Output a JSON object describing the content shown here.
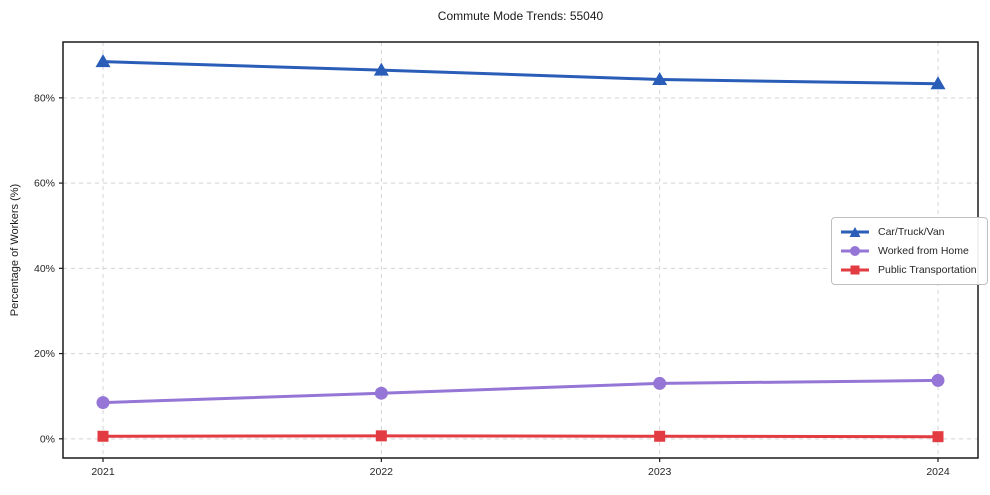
{
  "page": {
    "title": "Commute Mode Trends: 55040"
  },
  "axes": {
    "ylabel": "Percentage of Workers (%)",
    "y_tick_labels": [
      "0%",
      "20%",
      "40%",
      "60%",
      "80%"
    ],
    "x_tick_labels": [
      "2021",
      "2022",
      "2023",
      "2024"
    ]
  },
  "chart_data": {
    "type": "line",
    "title": "Commute Mode Trends: 55040",
    "xlabel": "",
    "ylabel": "Percentage of Workers (%)",
    "x": [
      2021,
      2022,
      2023,
      2024
    ],
    "x_tick_labels": [
      "2021",
      "2022",
      "2023",
      "2024"
    ],
    "y_ticks": [
      0,
      20,
      40,
      60,
      80
    ],
    "y_tick_labels": [
      "0%",
      "20%",
      "40%",
      "60%",
      "80%"
    ],
    "ylim": [
      -4.5,
      93.1
    ],
    "grid": true,
    "grid_style": "dashed",
    "legend_position": "center-right",
    "series": [
      {
        "name": "Car/Truck/Van",
        "color": "#2a5db8",
        "marker": "triangle",
        "values": [
          88.5,
          86.5,
          84.3,
          83.3
        ]
      },
      {
        "name": "Worked from Home",
        "color": "#9575d6",
        "marker": "circle",
        "values": [
          8.5,
          10.7,
          13.0,
          13.7
        ]
      },
      {
        "name": "Public Transportation",
        "color": "#e23b41",
        "marker": "square",
        "values": [
          0.6,
          0.7,
          0.6,
          0.5
        ]
      }
    ]
  }
}
